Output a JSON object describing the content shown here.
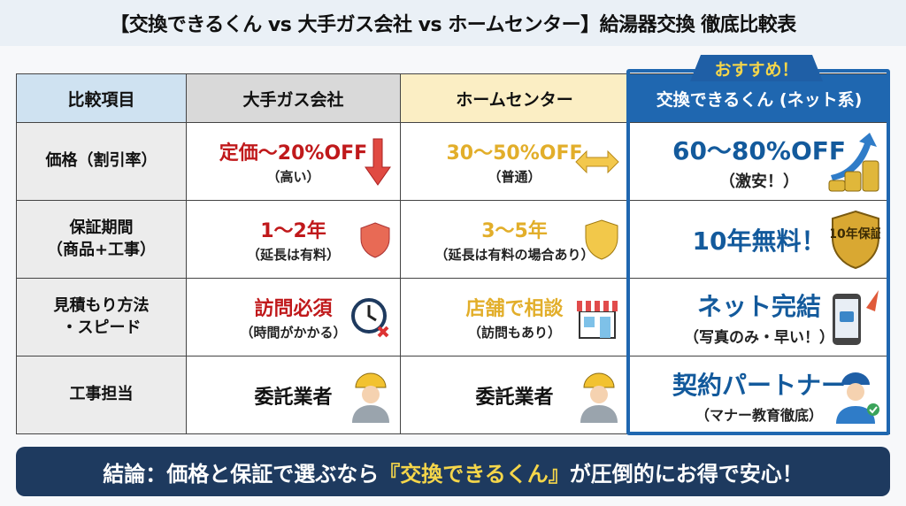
{
  "title": "【交換できるくん vs 大手ガス会社 vs ホームセンター】給湯器交換 徹底比較表",
  "badge": "おすすめ！",
  "headers": [
    "比較項目",
    "大手ガス会社",
    "ホームセンター",
    "交換できるくん (ネット系)"
  ],
  "rows": [
    {
      "label": "価格（割引率）",
      "cells": [
        {
          "main": "定価〜20%OFF",
          "sub": "（高い）",
          "icon": "down-arrow-icon"
        },
        {
          "main": "30〜50%OFF",
          "sub": "（普通）",
          "icon": "left-right-arrow-icon"
        },
        {
          "main": "60〜80%OFF",
          "sub": "（激安！）",
          "icon": "coins-up-arrow-icon"
        }
      ]
    },
    {
      "label": "保証期間\n（商品+工事）",
      "cells": [
        {
          "main": "1〜2年",
          "sub": "（延長は有料）",
          "icon": "shield-icon"
        },
        {
          "main": "3〜5年",
          "sub": "（延長は有料の場合あり）",
          "icon": "shield-icon"
        },
        {
          "main": "10年無料！",
          "sub": "",
          "icon": "warranty-badge-icon",
          "badge_text": "10年保証"
        }
      ]
    },
    {
      "label": "見積もり方法\n・スピード",
      "cells": [
        {
          "main": "訪問必須",
          "sub": "（時間がかかる）",
          "icon": "clock-icon"
        },
        {
          "main": "店舗で相談",
          "sub": "（訪問もあり）",
          "icon": "store-icon"
        },
        {
          "main": "ネット完結",
          "sub": "（写真のみ・早い！）",
          "icon": "smartphone-rocket-icon"
        }
      ]
    },
    {
      "label": "工事担当",
      "cells": [
        {
          "main": "委託業者",
          "sub": "",
          "icon": "worker-icon"
        },
        {
          "main": "委託業者",
          "sub": "",
          "icon": "worker-icon"
        },
        {
          "main": "契約パートナー",
          "sub": "（マナー教育徹底）",
          "icon": "staff-check-icon"
        }
      ]
    }
  ],
  "conclusion": {
    "pre": "結論：価格と保証で選ぶなら",
    "highlight": "『交換できるくん』",
    "post": "が圧倒的にお得で安心！"
  },
  "colors": {
    "accent": "#1f67b0",
    "red": "#c0191b",
    "yellow": "#e2ae2a",
    "navy": "#1e3a5f"
  }
}
